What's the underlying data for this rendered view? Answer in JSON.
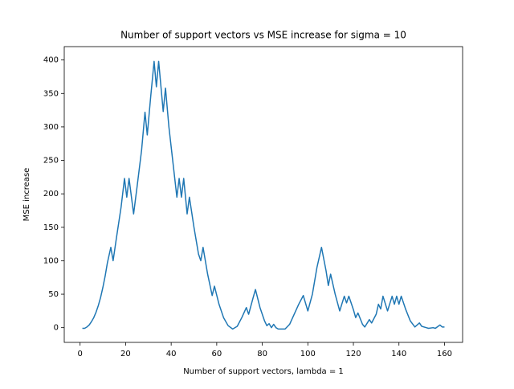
{
  "chart_data": {
    "type": "line",
    "title": "Number of support vectors vs MSE increase for sigma = 10",
    "x_label": "Number of support vectors, lambda = 1",
    "y_label": "MSE increase",
    "x": [
      1,
      2,
      3,
      4,
      5,
      6,
      7,
      8,
      9,
      10,
      11,
      12,
      13.5,
      14.5,
      16,
      18,
      19.5,
      20.5,
      21.5,
      23.5,
      25,
      27,
      28.5,
      29.5,
      31,
      32.5,
      33.5,
      34.5,
      36.5,
      37.5,
      39,
      41,
      42.5,
      43.5,
      44.5,
      45.5,
      47,
      48,
      50,
      52,
      53,
      54,
      56,
      58,
      59,
      61,
      63,
      65,
      67,
      69,
      71,
      73,
      74,
      76,
      77,
      79,
      81,
      82,
      83,
      84,
      85,
      86,
      87,
      89,
      90,
      92,
      94,
      96,
      98,
      100,
      102,
      104,
      106,
      108,
      109,
      110,
      112,
      114,
      116,
      117,
      118,
      120,
      121,
      122,
      124,
      125,
      127,
      128,
      130,
      131,
      132,
      133,
      135,
      137,
      138,
      139,
      140,
      141,
      143,
      145,
      147,
      149,
      150,
      152,
      153,
      155,
      156,
      158,
      159,
      160
    ],
    "series": [
      {
        "name": "MSE increase",
        "color": "#1f77b4",
        "values": [
          -1,
          -1,
          1,
          4,
          9,
          15,
          23,
          33,
          45,
          60,
          77,
          97,
          120,
          100,
          135,
          180,
          223,
          195,
          223,
          170,
          210,
          265,
          322,
          288,
          345,
          398,
          360,
          398,
          323,
          358,
          300,
          240,
          195,
          223,
          195,
          223,
          170,
          195,
          150,
          110,
          100,
          120,
          80,
          48,
          62,
          35,
          15,
          3,
          -2,
          2,
          15,
          30,
          20,
          45,
          57,
          30,
          10,
          3,
          6,
          0,
          5,
          0,
          -2,
          -2,
          -2,
          5,
          20,
          35,
          48,
          25,
          50,
          90,
          120,
          85,
          63,
          80,
          50,
          25,
          47,
          37,
          47,
          27,
          15,
          22,
          5,
          1,
          12,
          7,
          20,
          35,
          28,
          47,
          25,
          47,
          35,
          47,
          35,
          47,
          27,
          10,
          1,
          7,
          2,
          0,
          -1,
          0,
          -1,
          4,
          1,
          1
        ]
      }
    ],
    "xlim": [
      -6.95,
      167.95
    ],
    "ylim": [
      -22,
      420
    ],
    "xticks": [
      0,
      20,
      40,
      60,
      80,
      100,
      120,
      140,
      160
    ],
    "yticks": [
      0,
      50,
      100,
      150,
      200,
      250,
      300,
      350,
      400
    ]
  }
}
